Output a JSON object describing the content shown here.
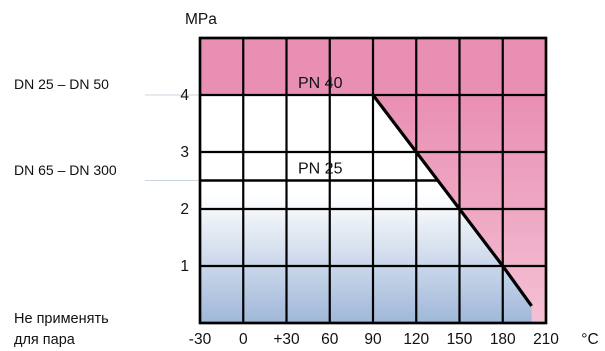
{
  "chart_data": {
    "type": "area",
    "y_unit": "MPa",
    "x_unit": "°C",
    "x_ticks": [
      "-30",
      "0",
      "+30",
      "60",
      "90",
      "120",
      "150",
      "180",
      "210"
    ],
    "x_tick_values": [
      -30,
      0,
      30,
      60,
      90,
      120,
      150,
      180,
      210
    ],
    "y_ticks": [
      "1",
      "2",
      "3",
      "4"
    ],
    "y_tick_values": [
      1,
      2,
      3,
      4
    ],
    "xlim": [
      -30,
      210
    ],
    "ylim": [
      0,
      5
    ],
    "grid": true,
    "boundary_line": {
      "x": [
        90,
        180,
        200
      ],
      "y": [
        4,
        1,
        0.3
      ]
    },
    "pressure_lines": [
      {
        "label": "PN 40",
        "y": 4
      },
      {
        "label": "PN 25",
        "y": 2.5
      }
    ],
    "dn_labels": [
      {
        "text": "DN 25 – DN 50",
        "y": 4
      },
      {
        "text": "DN 65 – DN 300",
        "y": 2.5
      }
    ],
    "note_lines": [
      "Не применять",
      "для пара"
    ],
    "colors": {
      "top_band": "#e98fb3",
      "top_band_light": "#f4c0d4",
      "bottom_band": "#9fb7d9",
      "grid": "#000000",
      "background": "#ffffff"
    }
  }
}
